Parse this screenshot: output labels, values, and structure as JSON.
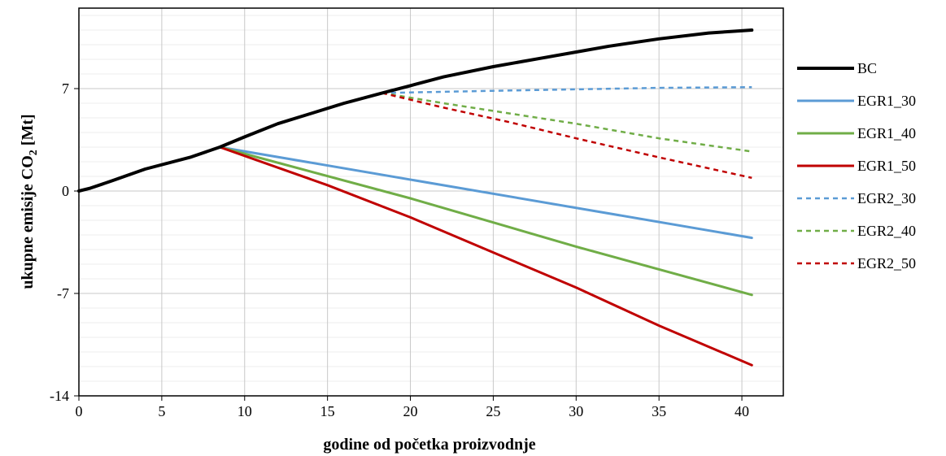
{
  "chart_data": {
    "type": "line",
    "xlabel": "godine od početka proizvodnje",
    "ylabel_main": "ukupne emisije CO",
    "ylabel_sub": "2",
    "ylabel_unit": " [Mt]",
    "xlim": [
      0,
      42.5
    ],
    "ylim": [
      -14,
      12.5
    ],
    "x_ticks": [
      0,
      5,
      10,
      15,
      20,
      25,
      30,
      35,
      40
    ],
    "y_ticks": [
      -14,
      -7,
      0,
      7
    ],
    "grid": true,
    "legend_position": "right",
    "series": [
      {
        "name": "BC",
        "color": "#000000",
        "dash": "solid",
        "width": 4,
        "x": [
          0,
          0.7,
          2,
          4,
          6.7,
          8.5,
          10,
          12,
          14,
          16,
          18.3,
          20,
          22,
          25,
          28,
          30,
          32,
          35,
          38,
          40.6
        ],
        "y": [
          0,
          0.2,
          0.7,
          1.5,
          2.3,
          3.0,
          3.7,
          4.6,
          5.3,
          6.0,
          6.7,
          7.2,
          7.8,
          8.5,
          9.1,
          9.5,
          9.9,
          10.4,
          10.8,
          11.0
        ]
      },
      {
        "name": "EGR1_30",
        "color": "#5B9BD5",
        "dash": "solid",
        "width": 3,
        "x": [
          8.5,
          40.6
        ],
        "y": [
          3.0,
          -3.2
        ]
      },
      {
        "name": "EGR1_40",
        "color": "#70AD47",
        "dash": "solid",
        "width": 3,
        "x": [
          8.5,
          20,
          30,
          40.6
        ],
        "y": [
          3.0,
          -0.5,
          -3.8,
          -7.1
        ]
      },
      {
        "name": "EGR1_50",
        "color": "#C00000",
        "dash": "solid",
        "width": 3,
        "x": [
          8.5,
          15,
          20,
          25,
          30,
          35,
          40.6
        ],
        "y": [
          3.0,
          0.4,
          -1.8,
          -4.2,
          -6.6,
          -9.2,
          -11.9
        ]
      },
      {
        "name": "EGR2_30",
        "color": "#5B9BD5",
        "dash": "dashed",
        "width": 2.5,
        "x": [
          18.3,
          25,
          30,
          35,
          40.6
        ],
        "y": [
          6.7,
          6.85,
          6.95,
          7.05,
          7.1
        ]
      },
      {
        "name": "EGR2_40",
        "color": "#70AD47",
        "dash": "dashed",
        "width": 2.5,
        "x": [
          18.3,
          22,
          26,
          30,
          35,
          40.6
        ],
        "y": [
          6.7,
          6.0,
          5.3,
          4.6,
          3.6,
          2.7
        ]
      },
      {
        "name": "EGR2_50",
        "color": "#C00000",
        "dash": "dashed",
        "width": 2.5,
        "x": [
          18.3,
          22,
          26,
          30,
          35,
          40.6
        ],
        "y": [
          6.7,
          5.7,
          4.7,
          3.6,
          2.3,
          0.9
        ]
      }
    ]
  }
}
